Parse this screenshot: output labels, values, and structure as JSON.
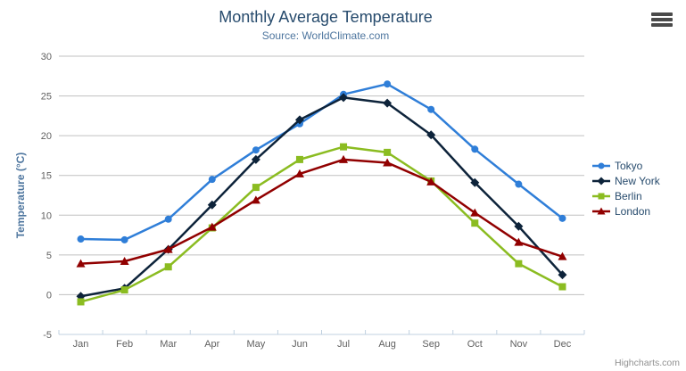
{
  "chart_data": {
    "type": "line",
    "title": "Monthly Average Temperature",
    "subtitle": "Source: WorldClimate.com",
    "xlabel": "",
    "ylabel": "Temperature (°C)",
    "ylim": [
      -5,
      30
    ],
    "ytick_step": 5,
    "grid": true,
    "legend_position": "right",
    "categories": [
      "Jan",
      "Feb",
      "Mar",
      "Apr",
      "May",
      "Jun",
      "Jul",
      "Aug",
      "Sep",
      "Oct",
      "Nov",
      "Dec"
    ],
    "series": [
      {
        "name": "Tokyo",
        "color": "#2f7ed8",
        "marker": "circle",
        "values": [
          7.0,
          6.9,
          9.5,
          14.5,
          18.2,
          21.5,
          25.2,
          26.5,
          23.3,
          18.3,
          13.9,
          9.6
        ]
      },
      {
        "name": "New York",
        "color": "#0d233a",
        "marker": "diamond",
        "values": [
          -0.2,
          0.8,
          5.7,
          11.3,
          17.0,
          22.0,
          24.8,
          24.1,
          20.1,
          14.1,
          8.6,
          2.5
        ]
      },
      {
        "name": "Berlin",
        "color": "#8bbc21",
        "marker": "square",
        "values": [
          -0.9,
          0.6,
          3.5,
          8.4,
          13.5,
          17.0,
          18.6,
          17.9,
          14.3,
          9.0,
          3.9,
          1.0
        ]
      },
      {
        "name": "London",
        "color": "#910000",
        "marker": "triangle",
        "values": [
          3.9,
          4.2,
          5.7,
          8.5,
          11.9,
          15.2,
          17.0,
          16.6,
          14.2,
          10.3,
          6.6,
          4.8
        ]
      }
    ],
    "credits": "Highcharts.com",
    "colors": {
      "title": "#274b6d",
      "subtitle": "#4d759e",
      "axis_title": "#4d759e",
      "axis_labels": "#606060",
      "gridline": "#c0c0c0",
      "axis_line": "#c0d0e0",
      "legend_text": "#274b6d",
      "credits_text": "#909090",
      "menu_icon": "#4a4a4a"
    }
  }
}
